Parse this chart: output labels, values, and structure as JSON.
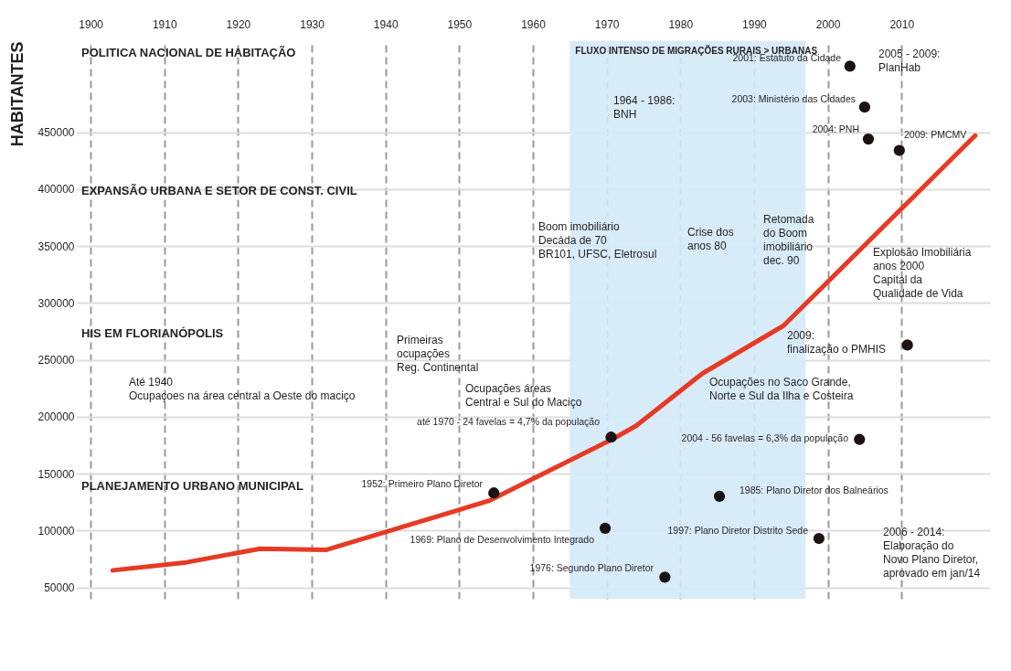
{
  "chart_data": {
    "type": "line",
    "ylabel": "HABITANTES",
    "xlim": [
      1898,
      2022
    ],
    "xticks": [
      1900,
      1910,
      1920,
      1930,
      1940,
      1950,
      1960,
      1970,
      1980,
      1990,
      2000,
      2010
    ],
    "ylim": [
      40000,
      530000
    ],
    "yticks": [
      50000,
      100000,
      150000,
      200000,
      250000,
      300000,
      350000,
      400000,
      450000
    ],
    "grid": true,
    "series": [
      {
        "color": "#e63a24",
        "x": [
          1903,
          1913,
          1923,
          1932,
          1954,
          1971,
          1974,
          1983,
          1994,
          2020
        ],
        "values": [
          65000,
          72000,
          84000,
          83000,
          126000,
          181000,
          192000,
          238000,
          280000,
          447000
        ]
      },
      {
        "type": "scatter",
        "color": "#1a1311",
        "x": [
          2003,
          2005,
          2005.5,
          2009.7,
          2010.8,
          1970.6,
          2004.3,
          1954.7,
          1969.8,
          1985.3,
          1998.8,
          1977.9
        ],
        "values": [
          508000,
          472000,
          444000,
          434000,
          263000,
          182000,
          180000,
          133000,
          102000,
          130000,
          93000,
          59000
        ]
      }
    ],
    "bands": [
      {
        "axis": "x",
        "from": 1965,
        "to": 1997,
        "label": "FLUXO INTENSO DE MIGRAÇÕES RURAIS > URBANAS",
        "color": "#d4e9f7"
      }
    ],
    "annotations": [
      "POLITICA NACIONAL DE HABITAÇÃO",
      "1964 - 1986:\nBNH",
      "2001: Estatuto da Cidade",
      "2003: Ministério das Cidades",
      "2004: PNH",
      "2009: PMCMV",
      "2005 - 2009:\nPlanHab",
      "EXPANSÃO URBANA E SETOR DE CONST. CIVIL",
      "Boom imobiliário\nDecáda de 70\nBR101, UFSC, Eletrosul",
      "Crise dos\nanos 80",
      "Retomada\ndo Boom\nimobiliário\ndec. 90",
      "Explosão Imobiliária\nanos 2000\nCapital  da\nQualidade de Vida",
      "HIS EM FLORIANÓPOLIS",
      "Até 1940\nOcupaçoes na área central a Oeste do maciço",
      "Primeiras\nocupações\nReg. Continental",
      "Ocupações áreas\nCentral e Sul do Maciço",
      "até 1970 - 24 favelas = 4,7% da população",
      "Ocupações no Saco Grande,\nNorte e Sul da Ilha e Costeira",
      "2009:\nfinalização o PMHIS",
      "2004 - 56 favelas = 6,3% da população",
      "PLANEJAMENTO URBANO MUNICIPAL",
      "1952: Primeiro Plano Diretor",
      "1969: Plano de Desenvolvimento Integrado",
      "1976: Segundo Plano Diretor",
      "1985: Plano Diretor dos Balneários",
      "1997: Plano Diretor Distrito Sede",
      "2006 - 2014:\nElaboração do\nNovo Plano Diretor,\naprovado em jan/14"
    ]
  }
}
